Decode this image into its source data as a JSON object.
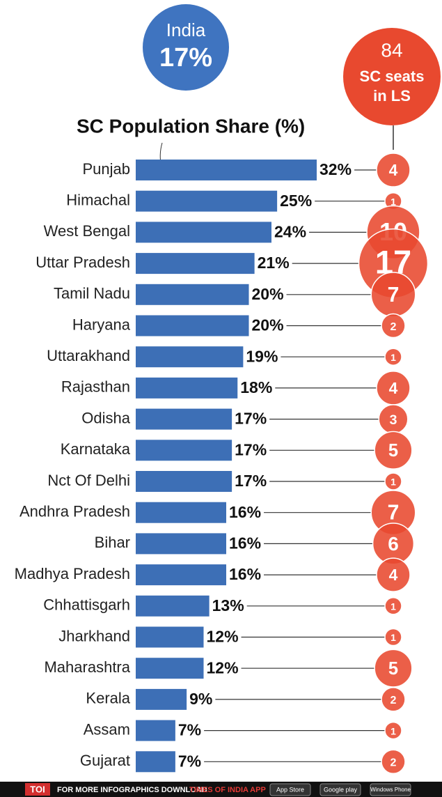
{
  "chart_data": {
    "type": "bar",
    "title": "SC Population Share (%)",
    "categories": [
      "Punjab",
      "Himachal",
      "West Bengal",
      "Uttar Pradesh",
      "Tamil Nadu",
      "Haryana",
      "Uttarakhand",
      "Rajasthan",
      "Odisha",
      "Karnataka",
      "Nct Of Delhi",
      "Andhra Pradesh",
      "Bihar",
      "Madhya Pradesh",
      "Chhattisgarh",
      "Jharkhand",
      "Maharashtra",
      "Kerala",
      "Assam",
      "Gujarat"
    ],
    "values": [
      32,
      25,
      24,
      21,
      20,
      20,
      19,
      18,
      17,
      17,
      17,
      16,
      16,
      16,
      13,
      12,
      12,
      9,
      7,
      7
    ],
    "value_labels": [
      "32%",
      "25%",
      "24%",
      "21%",
      "20%",
      "20%",
      "19%",
      "18%",
      "17%",
      "17%",
      "17%",
      "16%",
      "16%",
      "16%",
      "13%",
      "12%",
      "12%",
      "9%",
      "7%",
      "7%"
    ],
    "color": "#3d6fb6",
    "seats": [
      4,
      1,
      10,
      17,
      7,
      2,
      1,
      4,
      3,
      5,
      1,
      7,
      6,
      4,
      1,
      1,
      5,
      2,
      1,
      2
    ],
    "seats_color": "#e8492f",
    "india": {
      "label": "India",
      "value": 17,
      "value_label": "17%"
    },
    "seats_total": 84,
    "seats_label": "SC seats in LS"
  },
  "footer": {
    "brand": "TOI",
    "text": "FOR MORE INFOGRAPHICS DOWNLOAD",
    "app": "TIMES OF INDIA APP",
    "stores": [
      "App Store",
      "Google play",
      "Windows Phone"
    ]
  }
}
